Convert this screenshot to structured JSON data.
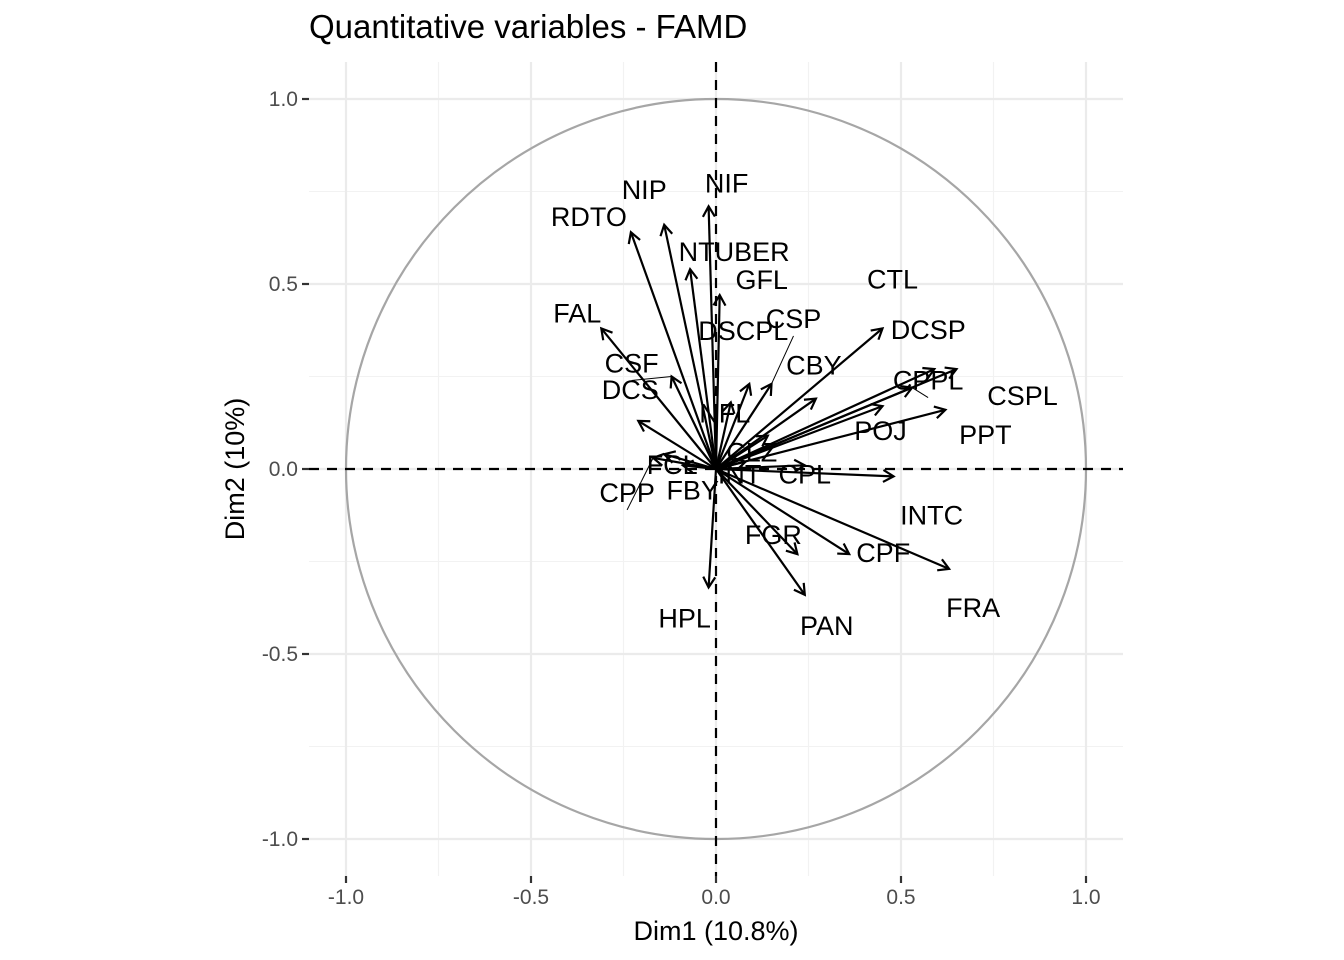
{
  "chart_data": {
    "type": "scatter",
    "title": "Quantitative variables - FAMD",
    "xlabel": "Dim1 (10.8%)",
    "ylabel": "Dim2 (10%)",
    "xlim": [
      -1.1,
      1.1
    ],
    "ylim": [
      -1.1,
      1.1
    ],
    "x_ticks": [
      "-1.0",
      "-0.5",
      "0.0",
      "0.5",
      "1.0"
    ],
    "y_ticks": [
      "-1.0",
      "-0.5",
      "0.0",
      "0.5",
      "1.0"
    ],
    "grid": true,
    "unit_circle": true,
    "circle_color": "#a6a6a6",
    "arrow_color": "#000000",
    "variables": [
      {
        "name": "NIF",
        "x": -0.02,
        "y": 0.71
      },
      {
        "name": "NIP",
        "x": -0.14,
        "y": 0.66
      },
      {
        "name": "RDTO",
        "x": -0.23,
        "y": 0.64
      },
      {
        "name": "NTUBER",
        "x": -0.07,
        "y": 0.54
      },
      {
        "name": "GFL",
        "x": 0.01,
        "y": 0.47
      },
      {
        "name": "FAL",
        "x": -0.31,
        "y": 0.38
      },
      {
        "name": "CTL",
        "x": 0.45,
        "y": 0.38
      },
      {
        "name": "CSP",
        "x": 0.15,
        "y": 0.23
      },
      {
        "name": "DCSP",
        "x": 0.59,
        "y": 0.27
      },
      {
        "name": "CSPL",
        "x": 0.65,
        "y": 0.27
      },
      {
        "name": "CPPL",
        "x": 0.53,
        "y": 0.22
      },
      {
        "name": "CSF",
        "x": -0.12,
        "y": 0.25
      },
      {
        "name": "DSCPL",
        "x": 0.09,
        "y": 0.23
      },
      {
        "name": "CBY",
        "x": 0.27,
        "y": 0.19
      },
      {
        "name": "POJ",
        "x": 0.45,
        "y": 0.17
      },
      {
        "name": "PPT",
        "x": 0.62,
        "y": 0.16
      },
      {
        "name": "DCS",
        "x": -0.21,
        "y": 0.13
      },
      {
        "name": "NFL",
        "x": 0.04,
        "y": 0.18
      },
      {
        "name": "CLZ",
        "x": 0.14,
        "y": 0.09
      },
      {
        "name": "FCL",
        "x": -0.14,
        "y": 0.04
      },
      {
        "name": "CPP",
        "x": -0.17,
        "y": 0.03
      },
      {
        "name": "FBY",
        "x": -0.09,
        "y": 0.01
      },
      {
        "name": "INT",
        "x": 0.08,
        "y": 0.02
      },
      {
        "name": "CPL",
        "x": 0.24,
        "y": 0.01
      },
      {
        "name": "INTC",
        "x": 0.48,
        "y": -0.02
      },
      {
        "name": "FGR",
        "x": 0.22,
        "y": -0.23
      },
      {
        "name": "CPF",
        "x": 0.36,
        "y": -0.23
      },
      {
        "name": "FRA",
        "x": 0.63,
        "y": -0.27
      },
      {
        "name": "HPL",
        "x": -0.02,
        "y": -0.32
      },
      {
        "name": "PAN",
        "x": 0.24,
        "y": -0.34
      }
    ]
  }
}
